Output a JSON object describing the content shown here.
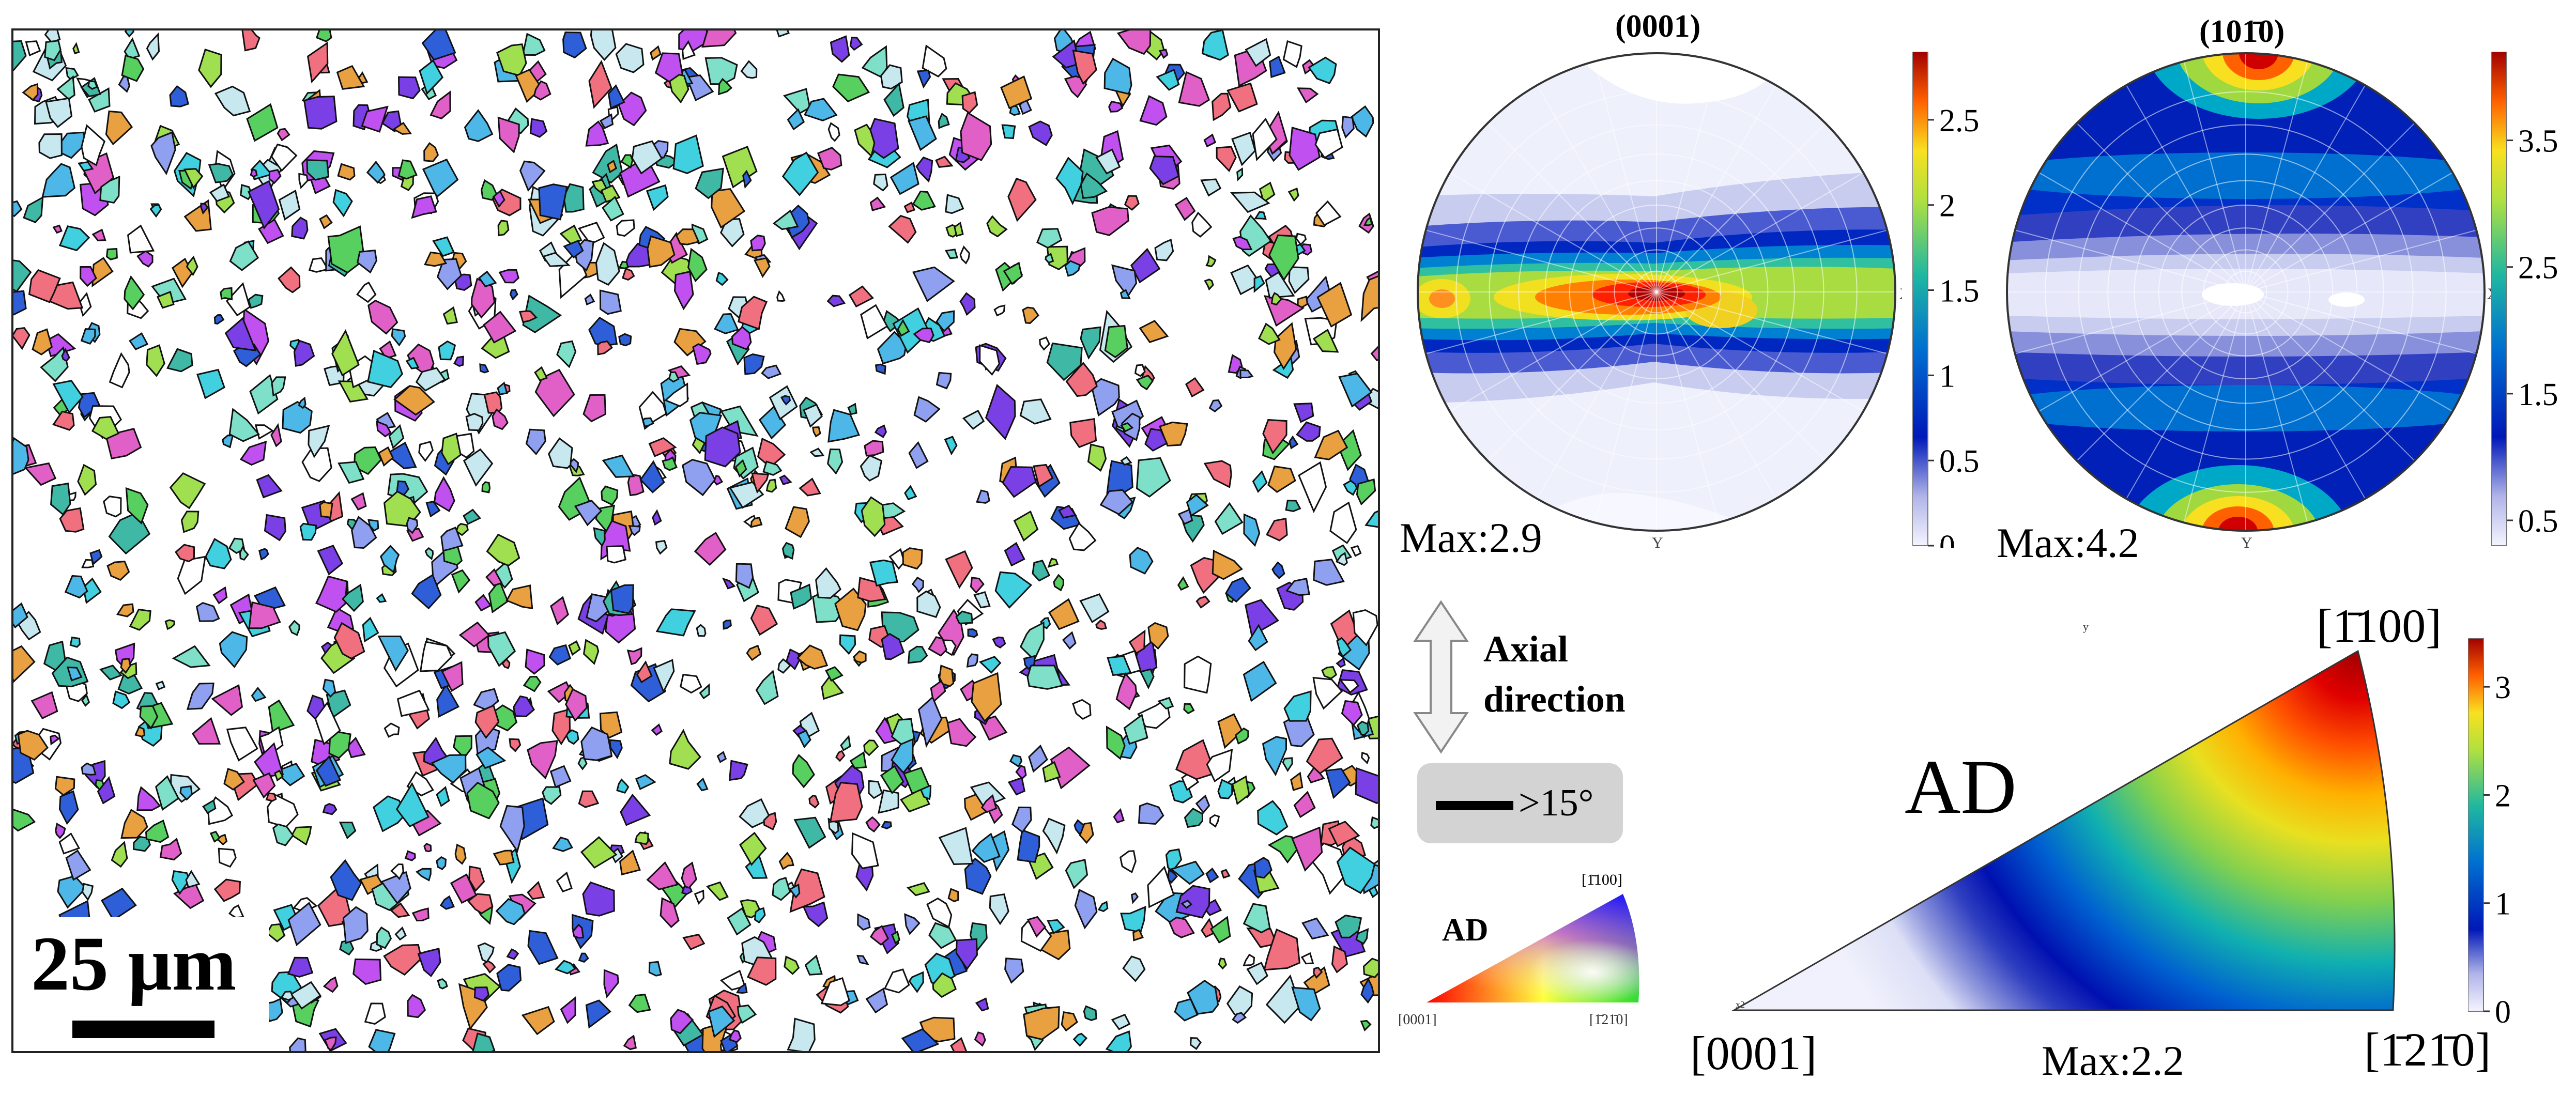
{
  "ebsd_map": {
    "scale_label": "25 μm",
    "grain_colors": [
      "#3fb8a6",
      "#7ee0c8",
      "#4db7e8",
      "#2f5fd8",
      "#7a40e6",
      "#c050f0",
      "#e060c8",
      "#f07080",
      "#58d060",
      "#a0e050",
      "#c8e8f0",
      "#90a0f0",
      "#40d0e0",
      "#e8a040",
      "#ffffff"
    ]
  },
  "pole_figure_0001": {
    "title": "(0001)",
    "max_label": "Max:2.9",
    "x_label": "X",
    "y_label": "Y",
    "colorbar_ticks": [
      "2.5",
      "2",
      "1.5",
      "1",
      "0.5",
      "0"
    ],
    "colorbar_values": [
      2.5,
      2,
      1.5,
      1,
      0.5,
      0
    ],
    "colorbar_range": [
      0,
      2.9
    ]
  },
  "pole_figure_10m10": {
    "title": "(101̄0)",
    "max_label": "Max:4.2",
    "x_label": "X",
    "y_label": "Y",
    "colorbar_ticks": [
      "3.5",
      "2.5",
      "1.5",
      "0.5"
    ],
    "colorbar_values": [
      3.5,
      2.5,
      1.5,
      0.5
    ],
    "colorbar_range": [
      0.3,
      4.2
    ]
  },
  "legend": {
    "axial_line1": "Axial",
    "axial_line2": "direction",
    "boundary_label": ">15°"
  },
  "ipf_key": {
    "label": "AD",
    "corner_0001": "[0001]",
    "corner_m1100": "[1̄100]",
    "corner_m12m10": "[1̄21̄0]"
  },
  "inverse_pole_figure": {
    "label": "AD",
    "corner_0001": "[0001]",
    "corner_m1100": "[1̄100]",
    "corner_m12m10": "[1̄21̄0]",
    "max_label": "Max:2.2",
    "small_y": "y",
    "small_x2": "x2",
    "colorbar_ticks": [
      "3",
      "2",
      "1",
      "0"
    ],
    "colorbar_values": [
      3,
      2,
      1,
      0
    ],
    "colorbar_range": [
      0,
      3.45
    ]
  },
  "colors": {
    "jet": [
      "#eeeeff",
      "#b8b8e8",
      "#5050c8",
      "#0010b0",
      "#0050d0",
      "#00a0c8",
      "#40c090",
      "#a0d840",
      "#f0e020",
      "#ff8000",
      "#ff2000",
      "#a00000"
    ]
  }
}
